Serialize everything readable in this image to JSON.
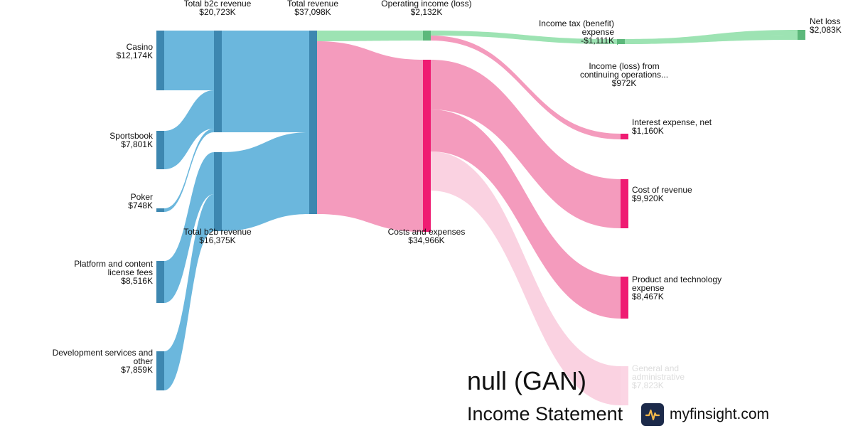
{
  "header": {
    "company": "null (GAN)",
    "subtitle": "Income Statement",
    "brand": "myfinsight.com"
  },
  "colors": {
    "revenue_link": "#6bb7dd",
    "revenue_node": "#3d87b0",
    "cost_link": "#f49bbd",
    "cost_node": "#ef1b72",
    "profit_link": "#9de3b3",
    "profit_node": "#5cb87b",
    "brand_bg": "#1c2a4a",
    "brand_accent": "#f2b74a"
  },
  "chart_data": {
    "type": "sankey",
    "unit": "$K",
    "nodes": [
      {
        "id": "casino",
        "label": [
          "Casino"
        ],
        "value": "$12,174K",
        "group": "revenue"
      },
      {
        "id": "sportsbook",
        "label": [
          "Sportsbook"
        ],
        "value": "$7,801K",
        "group": "revenue"
      },
      {
        "id": "poker",
        "label": [
          "Poker"
        ],
        "value": "$748K",
        "group": "revenue"
      },
      {
        "id": "platform",
        "label": [
          "Platform and content",
          "license fees"
        ],
        "value": "$8,516K",
        "group": "revenue"
      },
      {
        "id": "devservices",
        "label": [
          "Development services and",
          "other"
        ],
        "value": "$7,859K",
        "group": "revenue"
      },
      {
        "id": "b2c",
        "label": [
          "Total b2c revenue"
        ],
        "value": "$20,723K",
        "group": "revenue"
      },
      {
        "id": "b2b",
        "label": [
          "Total b2b revenue"
        ],
        "value": "$16,375K",
        "group": "revenue"
      },
      {
        "id": "total",
        "label": [
          "Total revenue"
        ],
        "value": "$37,098K",
        "group": "revenue"
      },
      {
        "id": "opinc",
        "label": [
          "Operating income (loss)"
        ],
        "value": "$2,132K",
        "group": "profit"
      },
      {
        "id": "costs",
        "label": [
          "Costs and expenses"
        ],
        "value": "$34,966K",
        "group": "cost"
      },
      {
        "id": "tax",
        "label": [
          "Income tax (benefit)",
          "expense"
        ],
        "value": "-$1,111K",
        "group": "profit"
      },
      {
        "id": "contops",
        "label": [
          "Income (loss) from",
          "continuing operations..."
        ],
        "value": "$972K",
        "group": "profit"
      },
      {
        "id": "interest",
        "label": [
          "Interest expense, net"
        ],
        "value": "$1,160K",
        "group": "cost"
      },
      {
        "id": "netloss",
        "label": [
          "Net loss"
        ],
        "value": "$2,083K",
        "group": "profit"
      },
      {
        "id": "cor",
        "label": [
          "Cost of revenue"
        ],
        "value": "$9,920K",
        "group": "cost"
      },
      {
        "id": "product",
        "label": [
          "Product and technology",
          "expense"
        ],
        "value": "$8,467K",
        "group": "cost"
      },
      {
        "id": "ga",
        "label": [
          "General and",
          "administrative"
        ],
        "value": "$7,823K",
        "group": "cost",
        "faded": true
      }
    ],
    "links": [
      {
        "source": "casino",
        "target": "b2c",
        "value": 12174
      },
      {
        "source": "sportsbook",
        "target": "b2c",
        "value": 7801
      },
      {
        "source": "poker",
        "target": "b2c",
        "value": 748
      },
      {
        "source": "platform",
        "target": "b2b",
        "value": 8516
      },
      {
        "source": "devservices",
        "target": "b2b",
        "value": 7859
      },
      {
        "source": "b2c",
        "target": "total",
        "value": 20723
      },
      {
        "source": "b2b",
        "target": "total",
        "value": 16375
      },
      {
        "source": "total",
        "target": "opinc",
        "value": 2132
      },
      {
        "source": "total",
        "target": "costs",
        "value": 34966
      },
      {
        "source": "opinc",
        "target": "contops",
        "value": 972
      },
      {
        "source": "opinc",
        "target": "interest",
        "value": 1160
      },
      {
        "source": "contops",
        "target": "netloss",
        "value": 972
      },
      {
        "source": "tax",
        "target": "netloss",
        "value": 1111
      },
      {
        "source": "costs",
        "target": "cor",
        "value": 9920
      },
      {
        "source": "costs",
        "target": "product",
        "value": 8467
      },
      {
        "source": "costs",
        "target": "ga",
        "value": 7823
      }
    ]
  }
}
